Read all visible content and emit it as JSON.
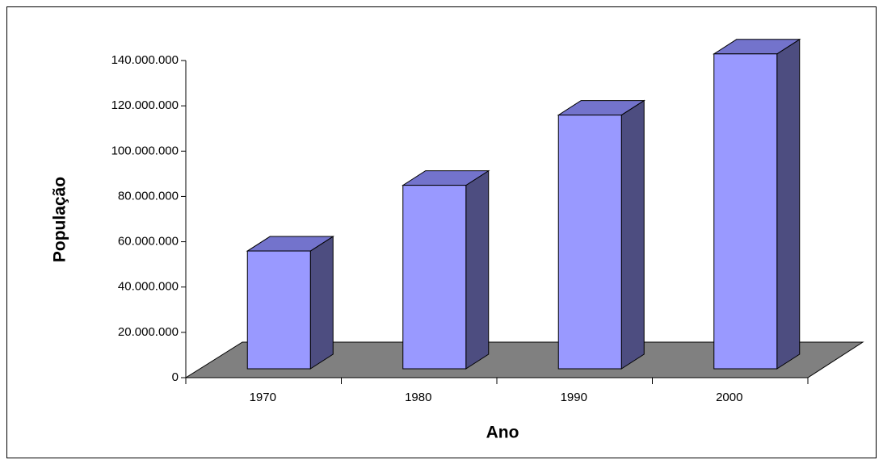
{
  "chart_data": {
    "type": "bar3d",
    "x_label": "Ano",
    "y_label": "População",
    "categories": [
      "1970",
      "1980",
      "1990",
      "2000"
    ],
    "values": [
      52000000,
      81000000,
      112000000,
      139000000
    ],
    "color": "#9999ff",
    "ylim": [
      0,
      140000000
    ],
    "yticks": [
      0,
      {
        "value": 20000000,
        "label": "20.000.000"
      },
      {
        "value": 40000000,
        "label": "40.000.000"
      },
      {
        "value": 60000000,
        "label": "60.000.000"
      },
      {
        "value": 80000000,
        "label": "80.000.000"
      },
      {
        "value": 100000000,
        "label": "100.000.000"
      },
      {
        "value": 120000000,
        "label": "120.000.000"
      },
      {
        "value": 140000000,
        "label": "140.000.000"
      }
    ]
  }
}
